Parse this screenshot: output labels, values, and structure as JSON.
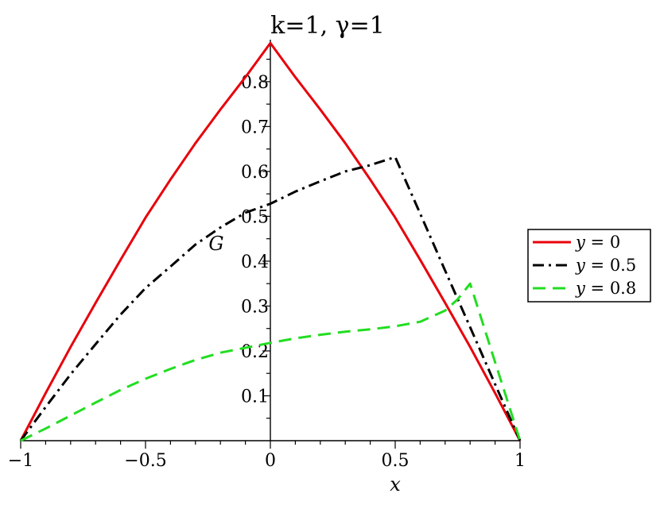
{
  "chart_data": {
    "type": "line",
    "title": "k=1,  γ=1",
    "xlabel": "x",
    "ylabel": "G",
    "xlim": [
      -1,
      1
    ],
    "ylim": [
      0,
      0.89
    ],
    "x_ticks": [
      {
        "value": -1,
        "label": "−1"
      },
      {
        "value": -0.5,
        "label": "−0.5"
      },
      {
        "value": 0,
        "label": "0"
      },
      {
        "value": 0.5,
        "label": "0.5"
      },
      {
        "value": 1,
        "label": "1"
      }
    ],
    "y_ticks": [
      {
        "value": 0.1,
        "label": "0.1"
      },
      {
        "value": 0.2,
        "label": "0.2"
      },
      {
        "value": 0.3,
        "label": "0.3"
      },
      {
        "value": 0.4,
        "label": "0.4"
      },
      {
        "value": 0.5,
        "label": "0.5"
      },
      {
        "value": 0.6,
        "label": "0.6"
      },
      {
        "value": 0.7,
        "label": "0.7"
      },
      {
        "value": 0.8,
        "label": "0.8"
      }
    ],
    "grid": false,
    "legend_position": "right",
    "series": [
      {
        "name": "y = 0",
        "legend_var": "y",
        "legend_rest": " = 0",
        "color": "#e8000b",
        "dash": "solid",
        "x": [
          -1,
          -0.9,
          -0.8,
          -0.7,
          -0.6,
          -0.5,
          -0.4,
          -0.3,
          -0.2,
          -0.1,
          0,
          0.1,
          0.2,
          0.3,
          0.4,
          0.5,
          0.6,
          0.7,
          0.8,
          0.9,
          1
        ],
        "y": [
          0,
          0.106,
          0.209,
          0.307,
          0.403,
          0.497,
          0.582,
          0.663,
          0.738,
          0.81,
          0.886,
          0.81,
          0.738,
          0.663,
          0.582,
          0.497,
          0.403,
          0.307,
          0.209,
          0.106,
          0
        ]
      },
      {
        "name": "y = 0.5",
        "legend_var": "y",
        "legend_rest": " = 0.5",
        "color": "#000000",
        "dash": "dashdot",
        "x": [
          -1,
          -0.9,
          -0.8,
          -0.7,
          -0.6,
          -0.5,
          -0.4,
          -0.3,
          -0.2,
          -0.1,
          0,
          0.1,
          0.2,
          0.3,
          0.4,
          0.5,
          0.6,
          0.7,
          0.8,
          0.9,
          1
        ],
        "y": [
          0,
          0.075,
          0.148,
          0.215,
          0.281,
          0.34,
          0.388,
          0.437,
          0.475,
          0.508,
          0.528,
          0.555,
          0.578,
          0.6,
          0.614,
          0.632,
          0.506,
          0.379,
          0.253,
          0.126,
          0
        ]
      },
      {
        "name": "y = 0.8",
        "legend_var": "y",
        "legend_rest": " = 0.8",
        "color": "#22dd22",
        "dash": "dashed",
        "x": [
          -1,
          -0.9,
          -0.8,
          -0.7,
          -0.6,
          -0.5,
          -0.4,
          -0.3,
          -0.2,
          -0.1,
          0,
          0.1,
          0.2,
          0.3,
          0.4,
          0.5,
          0.6,
          0.7,
          0.75,
          0.8,
          0.85,
          0.9,
          0.95,
          1
        ],
        "y": [
          0,
          0.027,
          0.056,
          0.085,
          0.113,
          0.138,
          0.16,
          0.18,
          0.196,
          0.207,
          0.218,
          0.228,
          0.236,
          0.243,
          0.248,
          0.255,
          0.265,
          0.29,
          0.315,
          0.35,
          0.263,
          0.175,
          0.088,
          0
        ]
      }
    ]
  }
}
